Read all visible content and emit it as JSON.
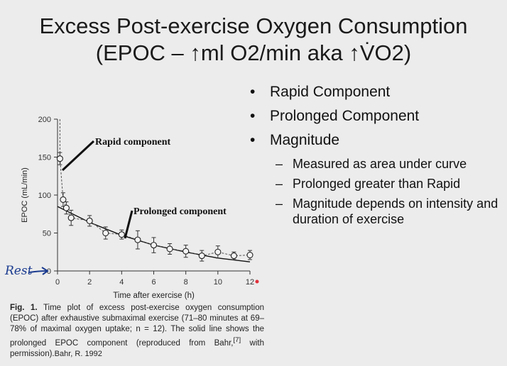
{
  "slide": {
    "title_line1": "Excess Post-exercise Oxygen Consumption",
    "title_line2": "(EPOC – ↑ml O2/min aka ↑V̇O2)",
    "bullets": [
      {
        "label": "Rapid Component"
      },
      {
        "label": "Prolonged Component"
      },
      {
        "label": "Magnitude"
      }
    ],
    "sub_bullets": [
      {
        "label": "Measured as area under curve"
      },
      {
        "label": "Prolonged greater than Rapid"
      },
      {
        "label": "Magnitude depends on intensity and duration of exercise"
      }
    ],
    "caption_label": "Fig. 1.",
    "caption_text": "Time plot of excess post-exercise oxygen consumption (EPOC) after exhaustive submaximal exercise (71–80 minutes at 69–78% of maximal oxygen uptake; n = 12). The solid line shows the prolonged EPOC component (reproduced from Bahr,",
    "caption_ref": "[7]",
    "caption_end": " with permission).",
    "credit": "Bahr, R. 1992",
    "rest_note": "Rest"
  },
  "chart_data": {
    "type": "line",
    "xlabel": "Time after exercise (h)",
    "ylabel": "EPOC (mL/min)",
    "xlim": [
      0,
      12
    ],
    "ylim": [
      0,
      200
    ],
    "x_ticks": [
      "0",
      "2",
      "4",
      "6",
      "8",
      "10",
      "12"
    ],
    "y_ticks": [
      "0",
      "50",
      "100",
      "150",
      "200"
    ],
    "annotations": [
      "Rapid component",
      "Prolonged component"
    ],
    "series": [
      {
        "style": "dashed-with-open-circles",
        "points": [
          {
            "x": 0.15,
            "y": 148,
            "err": 8
          },
          {
            "x": 0.35,
            "y": 94,
            "err": 9
          },
          {
            "x": 0.55,
            "y": 83,
            "err": 8
          },
          {
            "x": 0.85,
            "y": 70,
            "err": 10
          },
          {
            "x": 2.0,
            "y": 66,
            "err": 7
          },
          {
            "x": 3.0,
            "y": 50,
            "err": 8
          },
          {
            "x": 4.0,
            "y": 48,
            "err": 6
          },
          {
            "x": 5.0,
            "y": 41,
            "err": 12
          },
          {
            "x": 6.0,
            "y": 34,
            "err": 10
          },
          {
            "x": 7.0,
            "y": 29,
            "err": 7
          },
          {
            "x": 8.0,
            "y": 26,
            "err": 8
          },
          {
            "x": 9.0,
            "y": 20,
            "err": 7
          },
          {
            "x": 10.0,
            "y": 25,
            "err": 8
          },
          {
            "x": 11.0,
            "y": 20,
            "err": 5
          },
          {
            "x": 12.0,
            "y": 21,
            "err": 6
          }
        ],
        "dashed_extension_top": 200
      },
      {
        "style": "solid",
        "description_points": [
          {
            "x": 0,
            "y": 85
          },
          {
            "x": 2,
            "y": 64
          },
          {
            "x": 4,
            "y": 47
          },
          {
            "x": 6,
            "y": 34
          },
          {
            "x": 8,
            "y": 25
          },
          {
            "x": 10,
            "y": 17
          },
          {
            "x": 12,
            "y": 12
          }
        ]
      }
    ]
  }
}
